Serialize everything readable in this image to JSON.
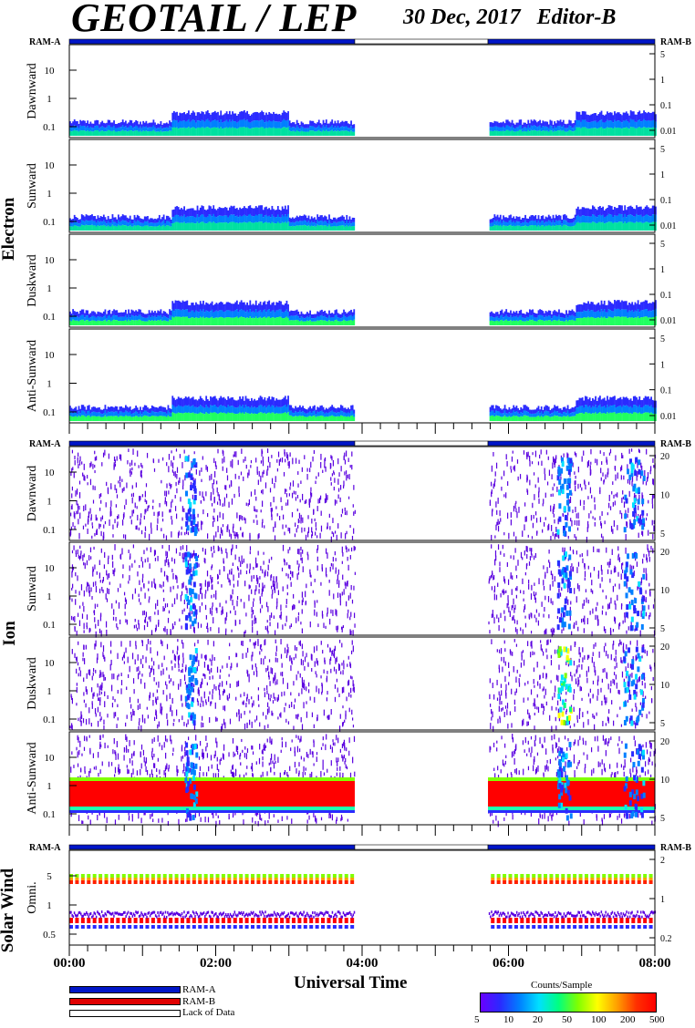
{
  "header": {
    "title": "GEOTAIL / LEP",
    "date": "30 Dec, 2017",
    "editor": "Editor-B"
  },
  "ram_labels": {
    "left": "RAM-A",
    "right": "RAM-B"
  },
  "groups": [
    "Electron",
    "Ion",
    "Solar Wind"
  ],
  "colors": {
    "ram_a": "#0016c8",
    "ram_b": "#e00000",
    "lack": "#ffffff"
  },
  "chart_data": {
    "type": "heatmap",
    "xlabel": "Universal Time",
    "x_ticks": [
      "00:00",
      "02:00",
      "04:00",
      "06:00",
      "08:00"
    ],
    "xlim_hours": [
      0,
      8
    ],
    "data_gaps_hours": [
      [
        3.9,
        5.72
      ]
    ],
    "ram_segments": [
      {
        "mode": "RAM-A",
        "start": 0.0,
        "end": 3.9
      },
      {
        "mode": "Lack of Data",
        "start": 3.9,
        "end": 5.72
      },
      {
        "mode": "RAM-A",
        "start": 5.72,
        "end": 8.0
      }
    ],
    "colorbar": {
      "title": "Counts/Sample",
      "ticks": [
        "5",
        "10",
        "20",
        "50",
        "100",
        "200",
        "500"
      ]
    },
    "legend": [
      "RAM-A",
      "RAM-B",
      "Lack of Data"
    ],
    "panels": [
      {
        "group": "Electron",
        "name": "Dawnward",
        "y_left": [
          "10",
          "1",
          "0.1"
        ],
        "y_right": [
          "5",
          "1",
          "0.1",
          "0.01"
        ]
      },
      {
        "group": "Electron",
        "name": "Sunward",
        "y_left": [
          "10",
          "1",
          "0.1"
        ],
        "y_right": [
          "5",
          "1",
          "0.1",
          "0.01"
        ]
      },
      {
        "group": "Electron",
        "name": "Duskward",
        "y_left": [
          "10",
          "1",
          "0.1"
        ],
        "y_right": [
          "5",
          "1",
          "0.1",
          "0.01"
        ]
      },
      {
        "group": "Electron",
        "name": "Anti-Sunward",
        "y_left": [
          "10",
          "1",
          "0.1"
        ],
        "y_right": [
          "5",
          "1",
          "0.1",
          "0.01"
        ]
      },
      {
        "group": "Ion",
        "name": "Dawnward",
        "y_left": [
          "10",
          "1",
          "0.1"
        ],
        "y_right": [
          "20",
          "10",
          "5"
        ]
      },
      {
        "group": "Ion",
        "name": "Sunward",
        "y_left": [
          "10",
          "1",
          "0.1"
        ],
        "y_right": [
          "20",
          "10",
          "5"
        ]
      },
      {
        "group": "Ion",
        "name": "Duskward",
        "y_left": [
          "10",
          "1",
          "0.1"
        ],
        "y_right": [
          "20",
          "10",
          "5"
        ]
      },
      {
        "group": "Ion",
        "name": "Anti-Sunward",
        "y_left": [
          "10",
          "1",
          "0.1"
        ],
        "y_right": [
          "20",
          "10",
          "5"
        ]
      },
      {
        "group": "Solar Wind",
        "name": "Omni.",
        "y_left": [
          "5",
          "1",
          "0.5"
        ],
        "y_right": [
          "2",
          "1",
          "0.2"
        ]
      }
    ]
  }
}
